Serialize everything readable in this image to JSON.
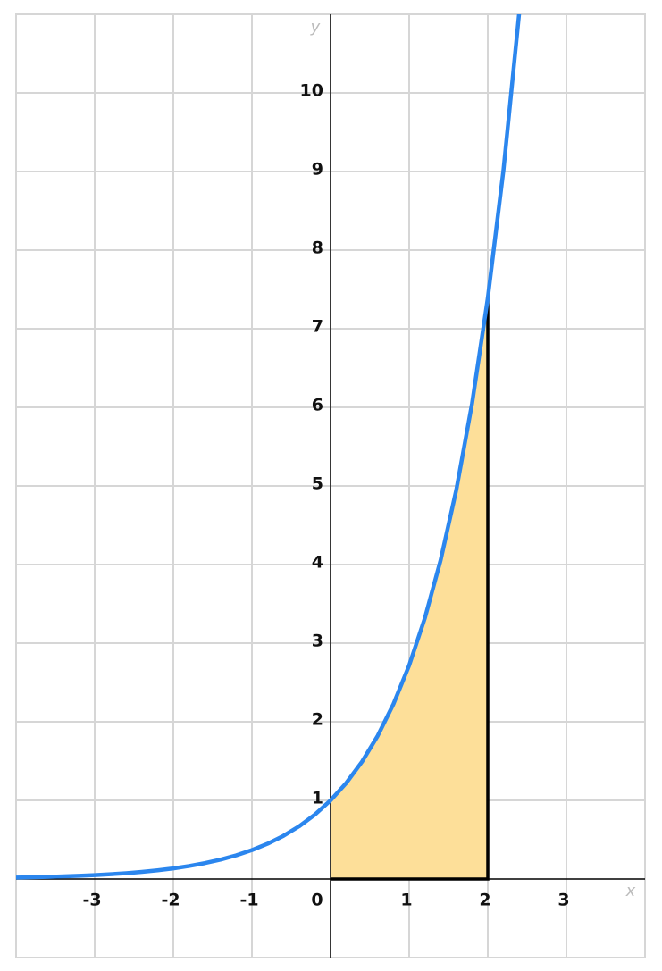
{
  "chart_data": {
    "type": "line",
    "xlabel": "x",
    "ylabel": "y",
    "xlim": [
      -4,
      4
    ],
    "ylim": [
      -1,
      11
    ],
    "xticks": [
      -3,
      -2,
      -1,
      0,
      1,
      2,
      3
    ],
    "yticks": [
      1,
      2,
      3,
      4,
      5,
      6,
      7,
      8,
      9,
      10
    ],
    "grid": true,
    "series": [
      {
        "color": "#2b86ee",
        "x": [
          -4,
          -3.8,
          -3.6,
          -3.4,
          -3.2,
          -3,
          -2.8,
          -2.6,
          -2.4,
          -2.2,
          -2,
          -1.8,
          -1.6,
          -1.4,
          -1.2,
          -1,
          -0.8,
          -0.6,
          -0.4,
          -0.2,
          0,
          0.2,
          0.4,
          0.6,
          0.8,
          1,
          1.2,
          1.4,
          1.6,
          1.8,
          2,
          2.2,
          2.4
        ],
        "values": [
          0.0183,
          0.0224,
          0.0273,
          0.0334,
          0.0408,
          0.0498,
          0.0608,
          0.0743,
          0.0907,
          0.1108,
          0.1353,
          0.1653,
          0.2019,
          0.2466,
          0.3012,
          0.3679,
          0.4493,
          0.5488,
          0.6703,
          0.8187,
          1,
          1.2214,
          1.4918,
          1.8221,
          2.2255,
          2.7183,
          3.3201,
          4.0552,
          4.953,
          6.0496,
          7.3891,
          9.025,
          11.0232
        ]
      }
    ],
    "area": {
      "color": "#fddf99",
      "x": [
        0,
        0.2,
        0.4,
        0.6,
        0.8,
        1,
        1.2,
        1.4,
        1.6,
        1.8,
        2
      ],
      "values": [
        1,
        1.2214,
        1.4918,
        1.8221,
        2.2255,
        2.7183,
        3.3201,
        4.0552,
        4.953,
        6.0496,
        7.3891
      ]
    }
  }
}
